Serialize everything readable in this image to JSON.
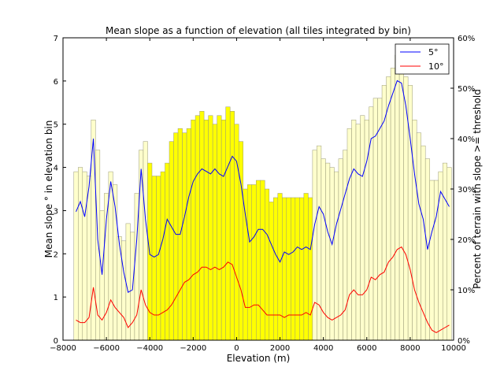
{
  "chart_data": {
    "type": "bar",
    "title": "Mean slope as a function of elevation (all tiles integrated by bin)",
    "xlabel": "Elevation (m)",
    "ylabel": "Mean slope ° in elevation bin",
    "y2label": "Percent of terrain with slope >= threshold",
    "xlim": [
      -8000,
      10000
    ],
    "ylim": [
      0,
      7
    ],
    "y2lim": [
      0,
      60
    ],
    "x_ticks": [
      "−8000",
      "−6000",
      "−4000",
      "−2000",
      "0",
      "2000",
      "4000",
      "6000",
      "8000",
      "10000"
    ],
    "y_ticks": [
      "0",
      "1",
      "2",
      "3",
      "4",
      "5",
      "6",
      "7"
    ],
    "y2_ticks": [
      "0%",
      "10%",
      "20%",
      "30%",
      "40%",
      "50%",
      "60%"
    ],
    "legend_position": "top-right",
    "bar_width": 200,
    "bars": {
      "x": [
        -7400,
        -7200,
        -7000,
        -6800,
        -6600,
        -6400,
        -6200,
        -6000,
        -5800,
        -5600,
        -5400,
        -5200,
        -5000,
        -4800,
        -4600,
        -4400,
        -4200,
        -4000,
        -3800,
        -3600,
        -3400,
        -3200,
        -3000,
        -2800,
        -2600,
        -2400,
        -2200,
        -2000,
        -1800,
        -1600,
        -1400,
        -1200,
        -1000,
        -800,
        -600,
        -400,
        -200,
        0,
        200,
        400,
        600,
        800,
        1000,
        1200,
        1400,
        1600,
        1800,
        2000,
        2200,
        2400,
        2600,
        2800,
        3000,
        3200,
        3400,
        3600,
        3800,
        4000,
        4200,
        4400,
        4600,
        4800,
        5000,
        5200,
        5400,
        5600,
        5800,
        6000,
        6200,
        6400,
        6600,
        6800,
        7000,
        7200,
        7400,
        7600,
        7800,
        8000,
        8200,
        8400,
        8600,
        8800,
        9000,
        9200,
        9400,
        9600,
        9800
      ],
      "values": [
        3.9,
        4.0,
        3.9,
        3.8,
        5.1,
        4.4,
        3.0,
        3.4,
        3.9,
        3.6,
        2.4,
        2.3,
        2.7,
        2.5,
        3.4,
        4.4,
        4.6,
        4.1,
        3.8,
        3.8,
        3.9,
        4.1,
        4.6,
        4.8,
        4.9,
        4.8,
        4.9,
        5.1,
        5.2,
        5.3,
        5.1,
        5.2,
        5.0,
        5.2,
        5.1,
        5.4,
        5.3,
        5.0,
        4.6,
        3.5,
        3.6,
        3.6,
        3.7,
        3.7,
        3.5,
        3.2,
        3.3,
        3.4,
        3.3,
        3.3,
        3.3,
        3.3,
        3.3,
        3.4,
        3.3,
        4.4,
        4.5,
        4.2,
        4.1,
        4.0,
        3.9,
        4.2,
        4.4,
        4.9,
        5.1,
        5.0,
        5.2,
        5.1,
        5.4,
        5.6,
        5.6,
        5.9,
        6.1,
        6.3,
        6.6,
        6.6,
        6.1,
        5.9,
        5.1,
        4.8,
        4.5,
        4.2,
        3.7,
        3.7,
        3.9,
        4.1,
        4.0
      ],
      "highlight": [
        false,
        false,
        false,
        false,
        false,
        false,
        false,
        false,
        false,
        false,
        false,
        false,
        false,
        false,
        false,
        false,
        false,
        true,
        true,
        true,
        true,
        true,
        true,
        true,
        true,
        true,
        true,
        true,
        true,
        true,
        true,
        true,
        true,
        true,
        true,
        true,
        true,
        true,
        true,
        true,
        true,
        true,
        true,
        true,
        true,
        true,
        true,
        true,
        true,
        true,
        true,
        true,
        true,
        true,
        true,
        false,
        false,
        false,
        false,
        false,
        false,
        false,
        false,
        false,
        false,
        false,
        false,
        false,
        false,
        false,
        false,
        false,
        false,
        false,
        false,
        false,
        false,
        false,
        false,
        false,
        false,
        false,
        false,
        false,
        false,
        false,
        false
      ],
      "color_light": "#ffffcc",
      "color_highlight": "#ffff00",
      "edge_color": "#999977"
    },
    "series": [
      {
        "name": "5°",
        "color": "#0000ff",
        "x": [
          -7400,
          -7200,
          -7000,
          -6800,
          -6600,
          -6400,
          -6200,
          -6000,
          -5800,
          -5600,
          -5400,
          -5200,
          -5000,
          -4800,
          -4600,
          -4400,
          -4200,
          -4000,
          -3800,
          -3600,
          -3400,
          -3200,
          -3000,
          -2800,
          -2600,
          -2400,
          -2200,
          -2000,
          -1800,
          -1600,
          -1400,
          -1200,
          -1000,
          -800,
          -600,
          -400,
          -200,
          0,
          200,
          400,
          600,
          800,
          1000,
          1200,
          1400,
          1600,
          1800,
          2000,
          2200,
          2400,
          2600,
          2800,
          3000,
          3200,
          3400,
          3600,
          3800,
          4000,
          4200,
          4400,
          4600,
          4800,
          5000,
          5200,
          5400,
          5600,
          5800,
          6000,
          6200,
          6400,
          6600,
          6800,
          7000,
          7200,
          7400,
          7600,
          7800,
          8000,
          8200,
          8400,
          8600,
          8800,
          9000,
          9200,
          9400,
          9600,
          9800
        ],
        "values": [
          25.5,
          27.5,
          24.5,
          30.5,
          40.0,
          20.0,
          13.0,
          24.0,
          31.5,
          26.5,
          19.0,
          13.5,
          9.5,
          10.0,
          20.0,
          34.0,
          24.0,
          17.0,
          16.5,
          17.0,
          20.0,
          24.0,
          22.5,
          21.0,
          21.0,
          24.5,
          28.5,
          31.5,
          33.0,
          34.0,
          33.5,
          33.0,
          34.0,
          33.0,
          32.5,
          34.5,
          36.5,
          35.5,
          31.0,
          25.0,
          19.5,
          20.5,
          22.0,
          22.0,
          21.0,
          19.0,
          17.0,
          15.5,
          17.5,
          17.0,
          17.5,
          18.5,
          18.0,
          18.5,
          18.0,
          23.0,
          26.5,
          25.0,
          21.5,
          19.0,
          23.0,
          26.0,
          29.0,
          32.0,
          34.0,
          33.0,
          32.5,
          35.5,
          40.0,
          40.5,
          42.0,
          43.5,
          46.5,
          49.0,
          51.5,
          51.0,
          46.5,
          40.0,
          33.0,
          27.0,
          24.0,
          18.0,
          21.5,
          24.5,
          29.5,
          28.0,
          26.5
        ]
      },
      {
        "name": "10°",
        "color": "#ff0000",
        "x": [
          -7400,
          -7200,
          -7000,
          -6800,
          -6600,
          -6400,
          -6200,
          -6000,
          -5800,
          -5600,
          -5400,
          -5200,
          -5000,
          -4800,
          -4600,
          -4400,
          -4200,
          -4000,
          -3800,
          -3600,
          -3400,
          -3200,
          -3000,
          -2800,
          -2600,
          -2400,
          -2200,
          -2000,
          -1800,
          -1600,
          -1400,
          -1200,
          -1000,
          -800,
          -600,
          -400,
          -200,
          0,
          200,
          400,
          600,
          800,
          1000,
          1200,
          1400,
          1600,
          1800,
          2000,
          2200,
          2400,
          2600,
          2800,
          3000,
          3200,
          3400,
          3600,
          3800,
          4000,
          4200,
          4400,
          4600,
          4800,
          5000,
          5200,
          5400,
          5600,
          5800,
          6000,
          6200,
          6400,
          6600,
          6800,
          7000,
          7200,
          7400,
          7600,
          7800,
          8000,
          8200,
          8400,
          8600,
          8800,
          9000,
          9200,
          9400,
          9600,
          9800
        ],
        "values": [
          4.0,
          3.5,
          3.5,
          4.5,
          10.5,
          5.0,
          4.0,
          5.5,
          8.0,
          6.5,
          5.5,
          4.5,
          2.5,
          3.5,
          5.0,
          10.0,
          7.0,
          5.5,
          5.0,
          5.0,
          5.5,
          6.0,
          7.0,
          8.5,
          10.0,
          11.5,
          12.0,
          13.0,
          13.5,
          14.5,
          14.5,
          14.0,
          14.5,
          14.0,
          14.5,
          15.5,
          15.0,
          12.5,
          10.0,
          6.5,
          6.5,
          7.0,
          7.0,
          6.0,
          5.0,
          5.0,
          5.0,
          5.0,
          4.5,
          5.0,
          5.0,
          5.0,
          5.0,
          5.5,
          5.0,
          7.5,
          7.0,
          5.5,
          4.5,
          4.0,
          4.5,
          5.0,
          6.0,
          9.0,
          10.0,
          9.0,
          9.0,
          10.0,
          12.5,
          12.0,
          13.0,
          13.5,
          15.5,
          16.5,
          18.0,
          18.5,
          17.0,
          14.0,
          10.0,
          7.5,
          5.5,
          3.5,
          2.0,
          1.5,
          2.0,
          2.5,
          3.0
        ]
      }
    ]
  }
}
